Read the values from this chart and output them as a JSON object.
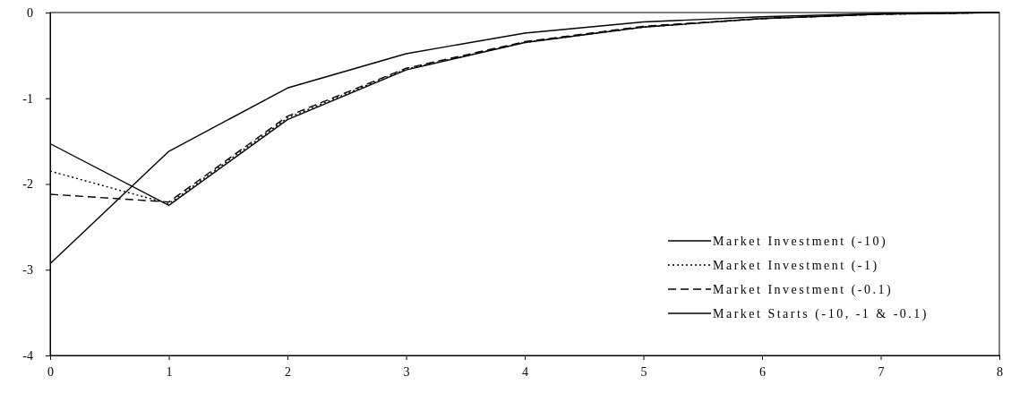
{
  "chart_data": {
    "type": "line",
    "x": [
      0,
      1,
      2,
      3,
      4,
      5,
      6,
      7,
      8
    ],
    "xlim": [
      0,
      8
    ],
    "xticks": [
      0,
      1,
      2,
      3,
      4,
      5,
      6,
      7,
      8
    ],
    "ylim": [
      -4,
      0
    ],
    "yticks": [
      -4,
      -3,
      -2,
      -1,
      0
    ],
    "legend": "bottom right",
    "grid": false,
    "marker": "none",
    "series": [
      {
        "name": "Market Investment (-10)",
        "color": "#000000",
        "line_style": "solid",
        "values": [
          -1.53,
          -2.25,
          -1.25,
          -0.67,
          -0.35,
          -0.17,
          -0.07,
          -0.02,
          0
        ]
      },
      {
        "name": "Market Investment (-1)",
        "color": "#000000",
        "line_style": "dotted",
        "values": [
          -1.85,
          -2.23,
          -1.23,
          -0.66,
          -0.35,
          -0.17,
          -0.07,
          -0.02,
          0
        ]
      },
      {
        "name": "Market Investment (-0.1)",
        "color": "#000000",
        "line_style": "dashed",
        "values": [
          -2.12,
          -2.21,
          -1.21,
          -0.65,
          -0.34,
          -0.16,
          -0.07,
          -0.02,
          0
        ]
      },
      {
        "name": "Market Starts (-10, -1 & -0.1)",
        "color": "#000000",
        "line_style": "solid",
        "values": [
          -2.93,
          -1.62,
          -0.88,
          -0.48,
          -0.24,
          -0.11,
          -0.05,
          -0.01,
          0
        ]
      }
    ]
  }
}
